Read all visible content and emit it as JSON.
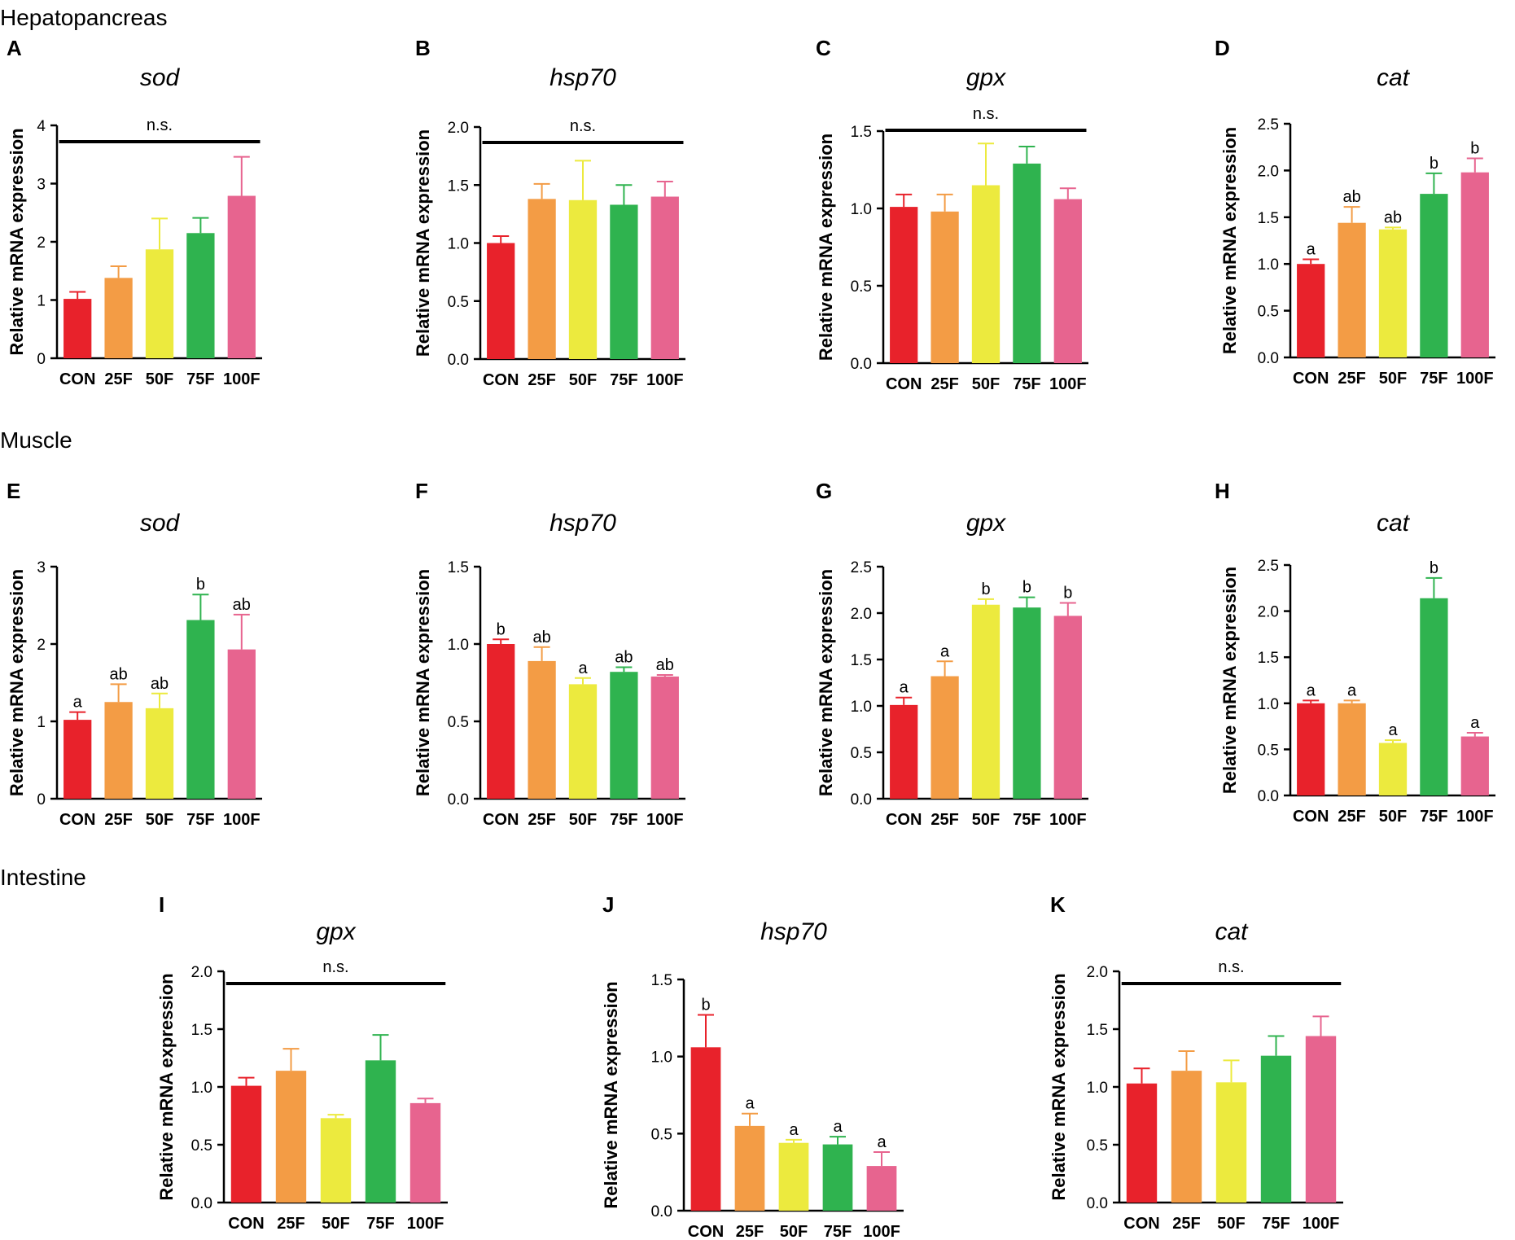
{
  "sections": [
    {
      "key": "hep",
      "title": "Hepatopancreas"
    },
    {
      "key": "mus",
      "title": "Muscle"
    },
    {
      "key": "int",
      "title": "Intestine"
    }
  ],
  "colors": {
    "CON": "#e8222b",
    "25F": "#f39c45",
    "50F": "#ecea3e",
    "75F": "#2fb34f",
    "100F": "#e7648f"
  },
  "chart_data": [
    {
      "letter": "A",
      "section": "Hepatopancreas",
      "type": "bar",
      "title": "sod",
      "ylabel": "Relative mRNA expression",
      "categories": [
        "CON",
        "25F",
        "50F",
        "75F",
        "100F"
      ],
      "values": [
        1.02,
        1.38,
        1.87,
        2.15,
        2.79
      ],
      "errors": [
        0.12,
        0.2,
        0.53,
        0.26,
        0.67
      ],
      "ylim": [
        0,
        4
      ],
      "yticks": [
        "0",
        "1",
        "2",
        "3",
        "4"
      ],
      "significance": "n.s.",
      "letters": []
    },
    {
      "letter": "B",
      "section": "Hepatopancreas",
      "type": "bar",
      "title": "hsp70",
      "ylabel": "Relative mRNA expression",
      "categories": [
        "CON",
        "25F",
        "50F",
        "75F",
        "100F"
      ],
      "values": [
        1.0,
        1.38,
        1.37,
        1.33,
        1.4
      ],
      "errors": [
        0.06,
        0.13,
        0.34,
        0.17,
        0.13
      ],
      "ylim": [
        0,
        2.0
      ],
      "yticks": [
        "0.0",
        "0.5",
        "1.0",
        "1.5",
        "2.0"
      ],
      "significance": "n.s.",
      "letters": []
    },
    {
      "letter": "C",
      "section": "Hepatopancreas",
      "type": "bar",
      "title": "gpx",
      "ylabel": "Relative mRNA expression",
      "categories": [
        "CON",
        "25F",
        "50F",
        "75F",
        "100F"
      ],
      "values": [
        1.01,
        0.98,
        1.15,
        1.29,
        1.06
      ],
      "errors": [
        0.08,
        0.11,
        0.27,
        0.11,
        0.07
      ],
      "ylim": [
        0,
        1.5
      ],
      "yticks": [
        "0.0",
        "0.5",
        "1.0",
        "1.5"
      ],
      "significance": "n.s.",
      "letters": []
    },
    {
      "letter": "D",
      "section": "Hepatopancreas",
      "type": "bar",
      "title": "cat",
      "ylabel": "Relative mRNA expression",
      "categories": [
        "CON",
        "25F",
        "50F",
        "75F",
        "100F"
      ],
      "values": [
        1.0,
        1.44,
        1.37,
        1.75,
        1.98
      ],
      "errors": [
        0.05,
        0.17,
        0.02,
        0.22,
        0.15
      ],
      "ylim": [
        0,
        2.5
      ],
      "yticks": [
        "0.0",
        "0.5",
        "1.0",
        "1.5",
        "2.0",
        "2.5"
      ],
      "significance": "",
      "letters": [
        "a",
        "ab",
        "ab",
        "b",
        "b"
      ]
    },
    {
      "letter": "E",
      "section": "Muscle",
      "type": "bar",
      "title": "sod",
      "ylabel": "Relative mRNA expression",
      "categories": [
        "CON",
        "25F",
        "50F",
        "75F",
        "100F"
      ],
      "values": [
        1.02,
        1.25,
        1.17,
        2.31,
        1.93
      ],
      "errors": [
        0.1,
        0.23,
        0.19,
        0.33,
        0.45
      ],
      "ylim": [
        0,
        3
      ],
      "yticks": [
        "0",
        "1",
        "2",
        "3"
      ],
      "significance": "",
      "letters": [
        "a",
        "ab",
        "ab",
        "b",
        "ab"
      ]
    },
    {
      "letter": "F",
      "section": "Muscle",
      "type": "bar",
      "title": "hsp70",
      "ylabel": "Relative mRNA expression",
      "categories": [
        "CON",
        "25F",
        "50F",
        "75F",
        "100F"
      ],
      "values": [
        1.0,
        0.89,
        0.74,
        0.82,
        0.79
      ],
      "errors": [
        0.03,
        0.09,
        0.04,
        0.03,
        0.01
      ],
      "ylim": [
        0,
        1.5
      ],
      "yticks": [
        "0.0",
        "0.5",
        "1.0",
        "1.5"
      ],
      "significance": "",
      "letters": [
        "b",
        "ab",
        "a",
        "ab",
        "ab"
      ]
    },
    {
      "letter": "G",
      "section": "Muscle",
      "type": "bar",
      "title": "gpx",
      "ylabel": "Relative mRNA expression",
      "categories": [
        "CON",
        "25F",
        "50F",
        "75F",
        "100F"
      ],
      "values": [
        1.01,
        1.32,
        2.09,
        2.06,
        1.97
      ],
      "errors": [
        0.08,
        0.16,
        0.06,
        0.11,
        0.14
      ],
      "ylim": [
        0,
        2.5
      ],
      "yticks": [
        "0.0",
        "0.5",
        "1.0",
        "1.5",
        "2.0",
        "2.5"
      ],
      "significance": "",
      "letters": [
        "a",
        "a",
        "b",
        "b",
        "b"
      ]
    },
    {
      "letter": "H",
      "section": "Muscle",
      "type": "bar",
      "title": "cat",
      "ylabel": "Relative mRNA expression",
      "categories": [
        "CON",
        "25F",
        "50F",
        "75F",
        "100F"
      ],
      "values": [
        1.0,
        1.0,
        0.57,
        2.14,
        0.64
      ],
      "errors": [
        0.03,
        0.03,
        0.03,
        0.22,
        0.04
      ],
      "ylim": [
        0,
        2.5
      ],
      "yticks": [
        "0.0",
        "0.5",
        "1.0",
        "1.5",
        "2.0",
        "2.5"
      ],
      "significance": "",
      "letters": [
        "a",
        "a",
        "a",
        "b",
        "a"
      ]
    },
    {
      "letter": "I",
      "section": "Intestine",
      "type": "bar",
      "title": "gpx",
      "ylabel": "Relative mRNA expression",
      "categories": [
        "CON",
        "25F",
        "50F",
        "75F",
        "100F"
      ],
      "values": [
        1.01,
        1.14,
        0.73,
        1.23,
        0.86
      ],
      "errors": [
        0.07,
        0.19,
        0.03,
        0.22,
        0.04
      ],
      "ylim": [
        0,
        2.0
      ],
      "yticks": [
        "0.0",
        "0.5",
        "1.0",
        "1.5",
        "2.0"
      ],
      "significance": "n.s.",
      "letters": []
    },
    {
      "letter": "J",
      "section": "Intestine",
      "type": "bar",
      "title": "hsp70",
      "ylabel": "Relative mRNA expression",
      "categories": [
        "CON",
        "25F",
        "50F",
        "75F",
        "100F"
      ],
      "values": [
        1.06,
        0.55,
        0.44,
        0.43,
        0.29
      ],
      "errors": [
        0.21,
        0.08,
        0.02,
        0.05,
        0.09
      ],
      "ylim": [
        0,
        1.5
      ],
      "yticks": [
        "0.0",
        "0.5",
        "1.0",
        "1.5"
      ],
      "significance": "",
      "letters": [
        "b",
        "a",
        "a",
        "a",
        "a"
      ]
    },
    {
      "letter": "K",
      "section": "Intestine",
      "type": "bar",
      "title": "cat",
      "ylabel": "Relative mRNA expression",
      "categories": [
        "CON",
        "25F",
        "50F",
        "75F",
        "100F"
      ],
      "values": [
        1.03,
        1.14,
        1.04,
        1.27,
        1.44
      ],
      "errors": [
        0.13,
        0.17,
        0.19,
        0.17,
        0.17
      ],
      "ylim": [
        0,
        2.0
      ],
      "yticks": [
        "0.0",
        "0.5",
        "1.0",
        "1.5",
        "2.0"
      ],
      "significance": "n.s.",
      "letters": []
    }
  ]
}
